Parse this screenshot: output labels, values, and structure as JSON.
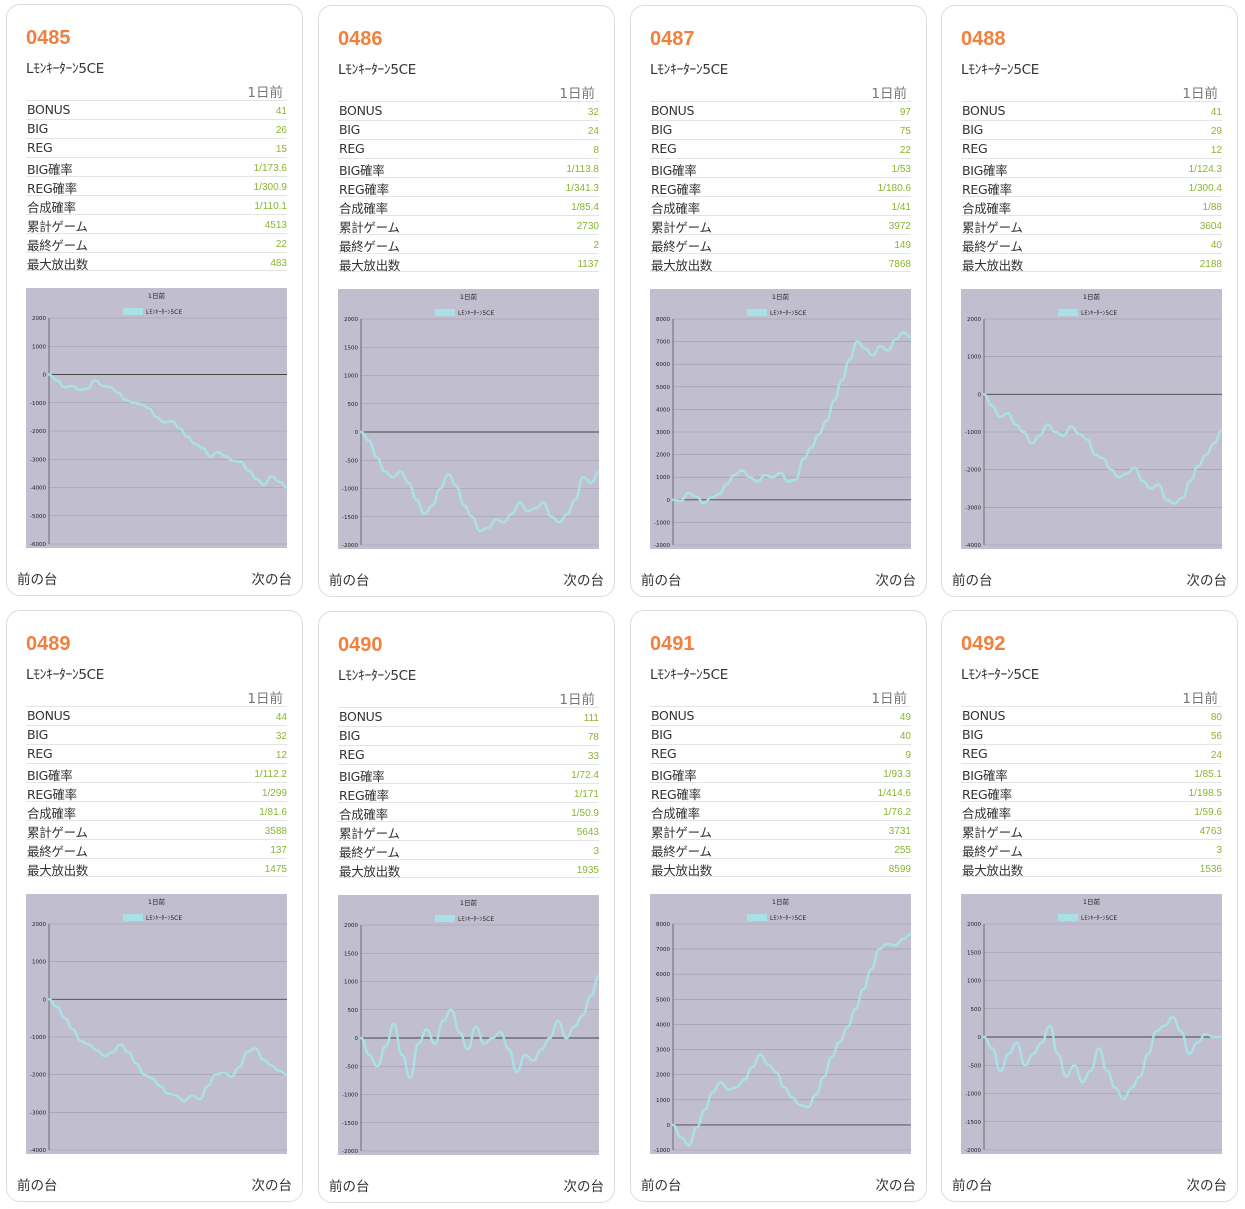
{
  "stat_labels": [
    "BONUS",
    "BIG",
    "REG",
    "BIG確率",
    "REG確率",
    "合成確率",
    "累計ゲーム",
    "最終ゲーム",
    "最大放出数"
  ],
  "prev_label": "前の台",
  "next_label": "次の台",
  "colors": {
    "number": "#f0803c",
    "value": "#8ab432",
    "graph_bg": "#c1bfcf",
    "line": "#a8e2e6"
  },
  "machines": [
    {
      "number": "0485",
      "model": "Lﾓﾝｷｰﾀｰﾝ5CE",
      "day": "1日前",
      "stats": [
        "41",
        "26",
        "15",
        "1/173.6",
        "1/300.9",
        "1/110.1",
        "4513",
        "22",
        "483"
      ],
      "chart": {
        "type": "line",
        "title": "1日前",
        "legend": "Lﾓﾝｷｰﾀｰﾝ5CE",
        "ylim": [
          -6000,
          2000
        ],
        "yticks": [
          2000,
          1000,
          0,
          -1000,
          -2000,
          -3000,
          -4000,
          -5000,
          -6000
        ],
        "values": [
          0,
          -200,
          -450,
          -400,
          -550,
          -500,
          -200,
          -400,
          -450,
          -650,
          -900,
          -1000,
          -1050,
          -1200,
          -1500,
          -1700,
          -1650,
          -1900,
          -2200,
          -2450,
          -2600,
          -2900,
          -2750,
          -2900,
          -3050,
          -3100,
          -3400,
          -3700,
          -3900,
          -3600,
          -3800,
          -4000
        ]
      }
    },
    {
      "number": "0486",
      "model": "Lﾓﾝｷｰﾀｰﾝ5CE",
      "day": "1日前",
      "stats": [
        "32",
        "24",
        "8",
        "1/113.8",
        "1/341.3",
        "1/85.4",
        "2730",
        "2",
        "1137"
      ],
      "chart": {
        "type": "line",
        "title": "1日前",
        "legend": "Lﾓﾝｷｰﾀｰﾝ5CE",
        "ylim": [
          -2000,
          2000
        ],
        "yticks": [
          2000,
          1500,
          1000,
          500,
          0,
          -500,
          -1000,
          -1500,
          -2000
        ],
        "values": [
          0,
          -150,
          -450,
          -700,
          -800,
          -700,
          -900,
          -1200,
          -1450,
          -1300,
          -1000,
          -750,
          -950,
          -1300,
          -1500,
          -1750,
          -1700,
          -1550,
          -1600,
          -1450,
          -1250,
          -1400,
          -1350,
          -1250,
          -1500,
          -1600,
          -1450,
          -1200,
          -800,
          -900,
          -700
        ]
      }
    },
    {
      "number": "0487",
      "model": "Lﾓﾝｷｰﾀｰﾝ5CE",
      "day": "1日前",
      "stats": [
        "97",
        "75",
        "22",
        "1/53",
        "1/180.6",
        "1/41",
        "3972",
        "149",
        "7868"
      ],
      "chart": {
        "type": "line",
        "title": "1日前",
        "legend": "Lﾓﾝｷｰﾀｰﾝ5CE",
        "ylim": [
          -2000,
          8000
        ],
        "yticks": [
          8000,
          7000,
          6000,
          5000,
          4000,
          3000,
          2000,
          1000,
          0,
          -1000,
          -2000
        ],
        "values": [
          0,
          -50,
          300,
          150,
          -150,
          100,
          250,
          700,
          1100,
          1300,
          1000,
          800,
          1100,
          1000,
          1200,
          800,
          900,
          1800,
          2300,
          2900,
          3500,
          4400,
          5300,
          6200,
          7000,
          6700,
          6400,
          6800,
          6600,
          7100,
          7400,
          7200
        ]
      }
    },
    {
      "number": "0488",
      "model": "Lﾓﾝｷｰﾀｰﾝ5CE",
      "day": "1日前",
      "stats": [
        "41",
        "29",
        "12",
        "1/124.3",
        "1/300.4",
        "1/88",
        "3604",
        "40",
        "2188"
      ],
      "chart": {
        "type": "line",
        "title": "1日前",
        "legend": "Lﾓﾝｷｰﾀｰﾝ5CE",
        "ylim": [
          -4000,
          2000
        ],
        "yticks": [
          2000,
          1000,
          0,
          -1000,
          -2000,
          -3000,
          -4000
        ],
        "values": [
          0,
          -300,
          -600,
          -500,
          -800,
          -1000,
          -1300,
          -1100,
          -800,
          -1000,
          -1100,
          -850,
          -1050,
          -1200,
          -1600,
          -1700,
          -2000,
          -2200,
          -2100,
          -1950,
          -2300,
          -2500,
          -2400,
          -2800,
          -2900,
          -2750,
          -2300,
          -1900,
          -1600,
          -1300,
          -950
        ]
      }
    },
    {
      "number": "0489",
      "model": "Lﾓﾝｷｰﾀｰﾝ5CE",
      "day": "1日前",
      "stats": [
        "44",
        "32",
        "12",
        "1/112.2",
        "1/299",
        "1/81.6",
        "3588",
        "137",
        "1475"
      ],
      "chart": {
        "type": "line",
        "title": "1日前",
        "legend": "Lﾓﾝｷｰﾀｰﾝ5CE",
        "ylim": [
          -4000,
          2000
        ],
        "yticks": [
          2000,
          1000,
          0,
          -1000,
          -2000,
          -3000,
          -4000
        ],
        "values": [
          0,
          -200,
          -500,
          -800,
          -1100,
          -1200,
          -1350,
          -1500,
          -1400,
          -1200,
          -1400,
          -1700,
          -2000,
          -2100,
          -2300,
          -2500,
          -2550,
          -2700,
          -2550,
          -2650,
          -2300,
          -2000,
          -1950,
          -2050,
          -1800,
          -1400,
          -1300,
          -1600,
          -1750,
          -1900,
          -2000
        ]
      }
    },
    {
      "number": "0490",
      "model": "Lﾓﾝｷｰﾀｰﾝ5CE",
      "day": "1日前",
      "stats": [
        "111",
        "78",
        "33",
        "1/72.4",
        "1/171",
        "1/50.9",
        "5643",
        "3",
        "1935"
      ],
      "chart": {
        "type": "line",
        "title": "1日前",
        "legend": "Lﾓﾝｷｰﾀｰﾝ5CE",
        "ylim": [
          -2000,
          2000
        ],
        "yticks": [
          2000,
          1500,
          1000,
          500,
          0,
          -500,
          -1000,
          -1500,
          -2000
        ],
        "values": [
          0,
          -300,
          -500,
          -150,
          250,
          -300,
          -700,
          -100,
          150,
          -100,
          300,
          500,
          100,
          -200,
          200,
          -100,
          0,
          100,
          -200,
          -600,
          -300,
          -400,
          -200,
          0,
          300,
          0,
          200,
          400,
          750,
          1100
        ]
      }
    },
    {
      "number": "0491",
      "model": "Lﾓﾝｷｰﾀｰﾝ5CE",
      "day": "1日前",
      "stats": [
        "49",
        "40",
        "9",
        "1/93.3",
        "1/414.6",
        "1/76.2",
        "3731",
        "255",
        "8599"
      ],
      "chart": {
        "type": "line",
        "title": "1日前",
        "legend": "Lﾓﾝｷｰﾀｰﾝ5CE",
        "ylim": [
          -1000,
          8000
        ],
        "yticks": [
          8000,
          7000,
          6000,
          5000,
          4000,
          3000,
          2000,
          1000,
          0,
          -1000,
          -2000
        ],
        "values": [
          0,
          -500,
          -800,
          -100,
          600,
          1300,
          1700,
          1400,
          1500,
          1800,
          2300,
          2800,
          2400,
          2100,
          1500,
          1100,
          800,
          700,
          1200,
          1900,
          2700,
          3300,
          3900,
          4600,
          5400,
          6200,
          7000,
          7200,
          7150,
          7400,
          7600
        ]
      }
    },
    {
      "number": "0492",
      "model": "Lﾓﾝｷｰﾀｰﾝ5CE",
      "day": "1日前",
      "stats": [
        "80",
        "56",
        "24",
        "1/85.1",
        "1/198.5",
        "1/59.6",
        "4763",
        "3",
        "1536"
      ],
      "chart": {
        "type": "line",
        "title": "1日前",
        "legend": "Lﾓﾝｷｰﾀｰﾝ5CE",
        "ylim": [
          -2000,
          2000
        ],
        "yticks": [
          2000,
          1500,
          1000,
          500,
          0,
          -500,
          -1000,
          -1500,
          -2000
        ],
        "values": [
          0,
          -200,
          -600,
          -300,
          -100,
          -500,
          -300,
          -100,
          200,
          -300,
          -700,
          -500,
          -800,
          -600,
          -200,
          -600,
          -900,
          -1100,
          -900,
          -700,
          -300,
          100,
          200,
          350,
          100,
          -300,
          -100,
          50,
          0,
          0
        ]
      }
    }
  ]
}
